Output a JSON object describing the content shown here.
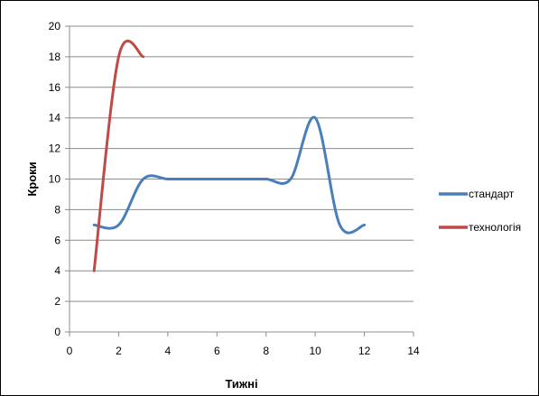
{
  "chart_data": {
    "type": "line",
    "title": "",
    "xlabel": "Тижні",
    "ylabel": "Кроки",
    "xlim": [
      0,
      14
    ],
    "ylim": [
      0,
      20
    ],
    "x_ticks": [
      "0",
      "2",
      "4",
      "6",
      "8",
      "10",
      "12",
      "14"
    ],
    "y_ticks": [
      "0",
      "2",
      "4",
      "6",
      "8",
      "10",
      "12",
      "14",
      "16",
      "18",
      "20"
    ],
    "grid": "horizontal",
    "legend_position": "right",
    "series": [
      {
        "name": "стандарт",
        "color": "#4a7ebb",
        "x": [
          1,
          2,
          3,
          4,
          5,
          6,
          7,
          8,
          9,
          10,
          11,
          12
        ],
        "y": [
          7,
          7,
          10,
          10,
          10,
          10,
          10,
          10,
          10,
          14,
          7,
          7
        ]
      },
      {
        "name": "технологія",
        "color": "#be4b48",
        "x": [
          1,
          2,
          3
        ],
        "y": [
          4,
          18,
          18
        ]
      }
    ]
  }
}
